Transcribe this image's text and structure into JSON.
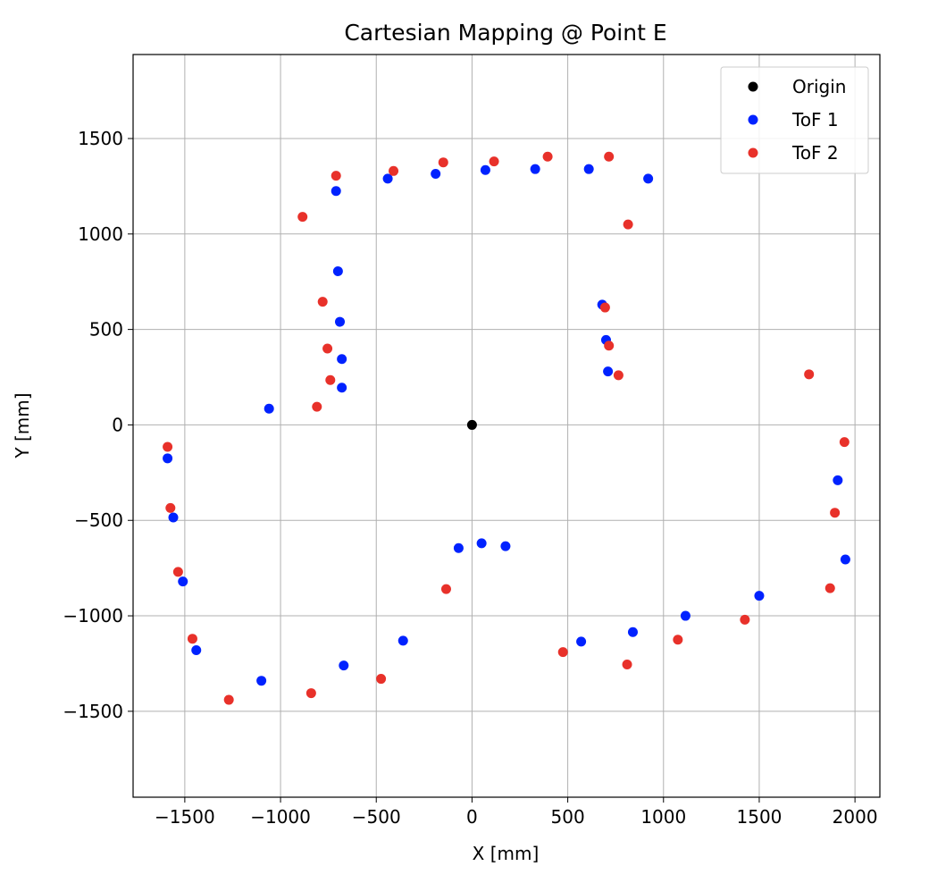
{
  "chart_data": {
    "type": "scatter",
    "title": "Cartesian Mapping @ Point E",
    "xlabel": "X [mm]",
    "ylabel": "Y [mm]",
    "xlim": [
      -1770,
      2130
    ],
    "ylim": [
      -1950,
      1940
    ],
    "xticks": [
      -1500,
      -1000,
      -500,
      0,
      500,
      1000,
      1500,
      2000
    ],
    "xtick_labels": [
      "−1500",
      "−1000",
      "−500",
      "0",
      "500",
      "1000",
      "1500",
      "2000"
    ],
    "yticks": [
      -1500,
      -1000,
      -500,
      0,
      500,
      1000,
      1500
    ],
    "ytick_labels": [
      "−1500",
      "−1000",
      "−500",
      "0",
      "500",
      "1000",
      "1500"
    ],
    "grid": true,
    "legend_position": "top-right",
    "series": [
      {
        "name": "Origin",
        "color": "#000000",
        "points": [
          [
            0,
            0
          ]
        ]
      },
      {
        "name": "ToF 1",
        "color": "#0022ff",
        "points": [
          [
            -710,
            1225
          ],
          [
            -440,
            1290
          ],
          [
            -190,
            1315
          ],
          [
            70,
            1335
          ],
          [
            330,
            1340
          ],
          [
            610,
            1340
          ],
          [
            920,
            1290
          ],
          [
            -700,
            805
          ],
          [
            -690,
            540
          ],
          [
            -680,
            345
          ],
          [
            -680,
            195
          ],
          [
            -1060,
            85
          ],
          [
            680,
            630
          ],
          [
            700,
            445
          ],
          [
            710,
            280
          ],
          [
            -1590,
            -175
          ],
          [
            -1560,
            -485
          ],
          [
            -1510,
            -820
          ],
          [
            -1440,
            -1180
          ],
          [
            -1100,
            -1340
          ],
          [
            -670,
            -1260
          ],
          [
            -360,
            -1130
          ],
          [
            -70,
            -645
          ],
          [
            50,
            -620
          ],
          [
            175,
            -635
          ],
          [
            570,
            -1135
          ],
          [
            840,
            -1085
          ],
          [
            1115,
            -1000
          ],
          [
            1500,
            -895
          ],
          [
            1910,
            -290
          ],
          [
            1950,
            -705
          ]
        ]
      },
      {
        "name": "ToF 2",
        "color": "#e8312a",
        "points": [
          [
            -710,
            1305
          ],
          [
            -410,
            1330
          ],
          [
            -150,
            1375
          ],
          [
            115,
            1380
          ],
          [
            395,
            1405
          ],
          [
            715,
            1405
          ],
          [
            815,
            1050
          ],
          [
            -885,
            1090
          ],
          [
            -780,
            645
          ],
          [
            -755,
            400
          ],
          [
            -740,
            235
          ],
          [
            -810,
            95
          ],
          [
            695,
            615
          ],
          [
            715,
            415
          ],
          [
            765,
            260
          ],
          [
            1760,
            265
          ],
          [
            -1590,
            -115
          ],
          [
            -1575,
            -435
          ],
          [
            -1535,
            -770
          ],
          [
            -1460,
            -1120
          ],
          [
            -1270,
            -1440
          ],
          [
            -840,
            -1405
          ],
          [
            -475,
            -1330
          ],
          [
            -135,
            -860
          ],
          [
            475,
            -1190
          ],
          [
            810,
            -1255
          ],
          [
            1075,
            -1125
          ],
          [
            1425,
            -1020
          ],
          [
            1870,
            -855
          ],
          [
            1895,
            -460
          ],
          [
            1945,
            -90
          ]
        ]
      }
    ]
  }
}
